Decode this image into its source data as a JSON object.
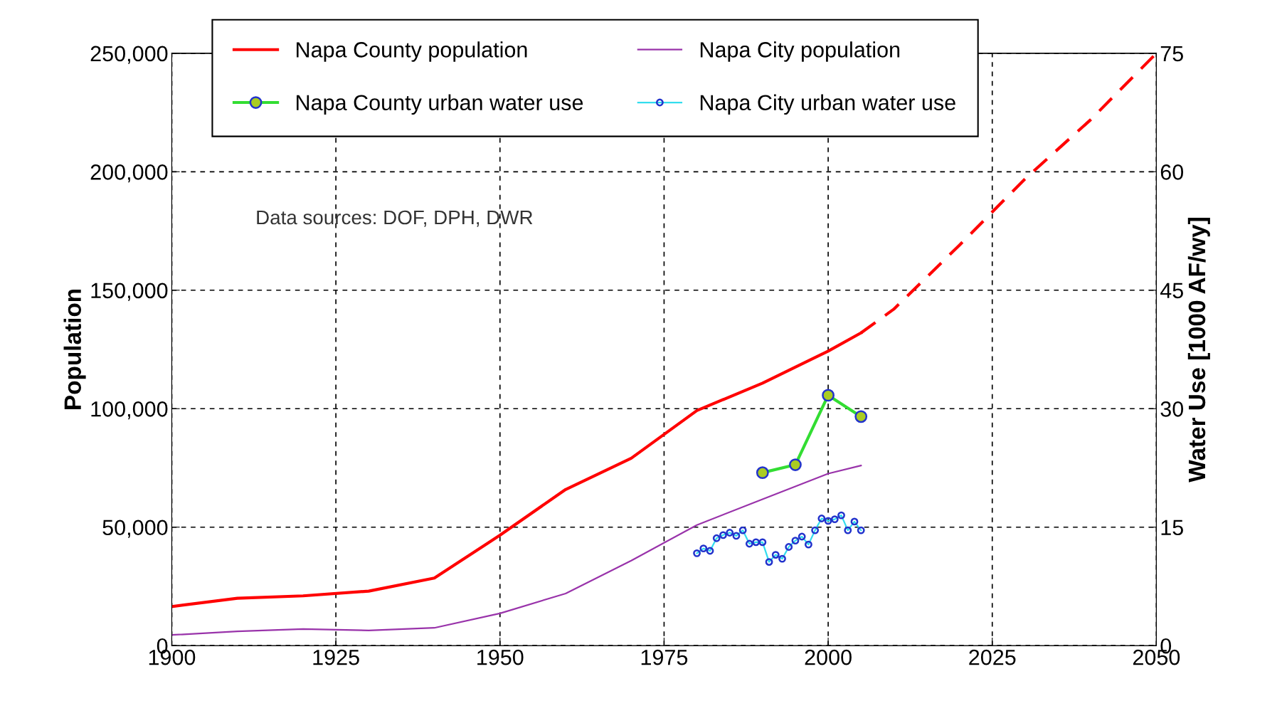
{
  "chart_data": {
    "type": "line",
    "ylabel": "Population",
    "y2label": "Water Use [1000 AF/wy]",
    "xlim": [
      1900,
      2050
    ],
    "xticks": [
      1900,
      1925,
      1950,
      1975,
      2000,
      2025,
      2050
    ],
    "ylim": [
      0,
      250000
    ],
    "yticks": [
      {
        "value": 0,
        "label": "0"
      },
      {
        "value": 50000,
        "label": "50,000"
      },
      {
        "value": 100000,
        "label": "100,000"
      },
      {
        "value": 150000,
        "label": "150,000"
      },
      {
        "value": 200000,
        "label": "200,000"
      },
      {
        "value": 250000,
        "label": "250,000"
      }
    ],
    "y2lim": [
      0,
      75
    ],
    "y2ticks": [
      0,
      15,
      30,
      45,
      60,
      75
    ],
    "grid": true,
    "legend": "top",
    "annotations": [
      "Data sources: DOF, DPH, DWR"
    ],
    "series": [
      {
        "name": "Napa County population",
        "color": "#ff0000",
        "marker": "none",
        "line_style": "solid",
        "x": [
          1900,
          1910,
          1920,
          1930,
          1940,
          1950,
          1960,
          1970,
          1980,
          1990,
          2000,
          2005
        ],
        "values": [
          16500,
          20000,
          21000,
          23000,
          28500,
          46600,
          65900,
          79100,
          99200,
          110800,
          124300,
          132000
        ]
      },
      {
        "color": "#ff0000",
        "marker": "none",
        "line_style": "dashed",
        "x": [
          2005,
          2010,
          2020,
          2030,
          2040,
          2050
        ],
        "values": [
          132000,
          142000,
          169000,
          197000,
          222000,
          250000
        ]
      },
      {
        "name": "Napa City population",
        "color": "#9933aa",
        "marker": "none",
        "line_style": "solid",
        "x": [
          1900,
          1910,
          1920,
          1930,
          1940,
          1950,
          1960,
          1970,
          1980,
          1990,
          2000,
          2005
        ],
        "values": [
          4500,
          6000,
          7000,
          6400,
          7500,
          13600,
          22000,
          35900,
          50900,
          61800,
          72600,
          76000
        ]
      },
      {
        "name": "Napa County urban water use",
        "color": "#33dd33",
        "marker": "circle",
        "line_style": "solid",
        "axis": "y2",
        "x": [
          1990,
          1995,
          2000,
          2005
        ],
        "values": [
          21.9,
          22.9,
          31.7,
          29.0
        ]
      },
      {
        "name": "Napa City urban water use",
        "color": "#33ddee",
        "marker": "circle",
        "line_style": "solid",
        "axis": "y2",
        "x": [
          1980,
          1981,
          1982,
          1983,
          1984,
          1985,
          1986,
          1987,
          1988,
          1989,
          1990,
          1991,
          1992,
          1993,
          1994,
          1995,
          1996,
          1997,
          1998,
          1999,
          2000,
          2001,
          2002,
          2003,
          2004,
          2005
        ],
        "values": [
          11.7,
          12.3,
          12.0,
          13.6,
          14.0,
          14.3,
          13.9,
          14.6,
          12.9,
          13.1,
          13.1,
          10.6,
          11.5,
          11.0,
          12.5,
          13.3,
          13.8,
          12.8,
          14.6,
          16.1,
          15.8,
          16.0,
          16.5,
          14.6,
          15.7,
          14.6
        ]
      }
    ]
  }
}
